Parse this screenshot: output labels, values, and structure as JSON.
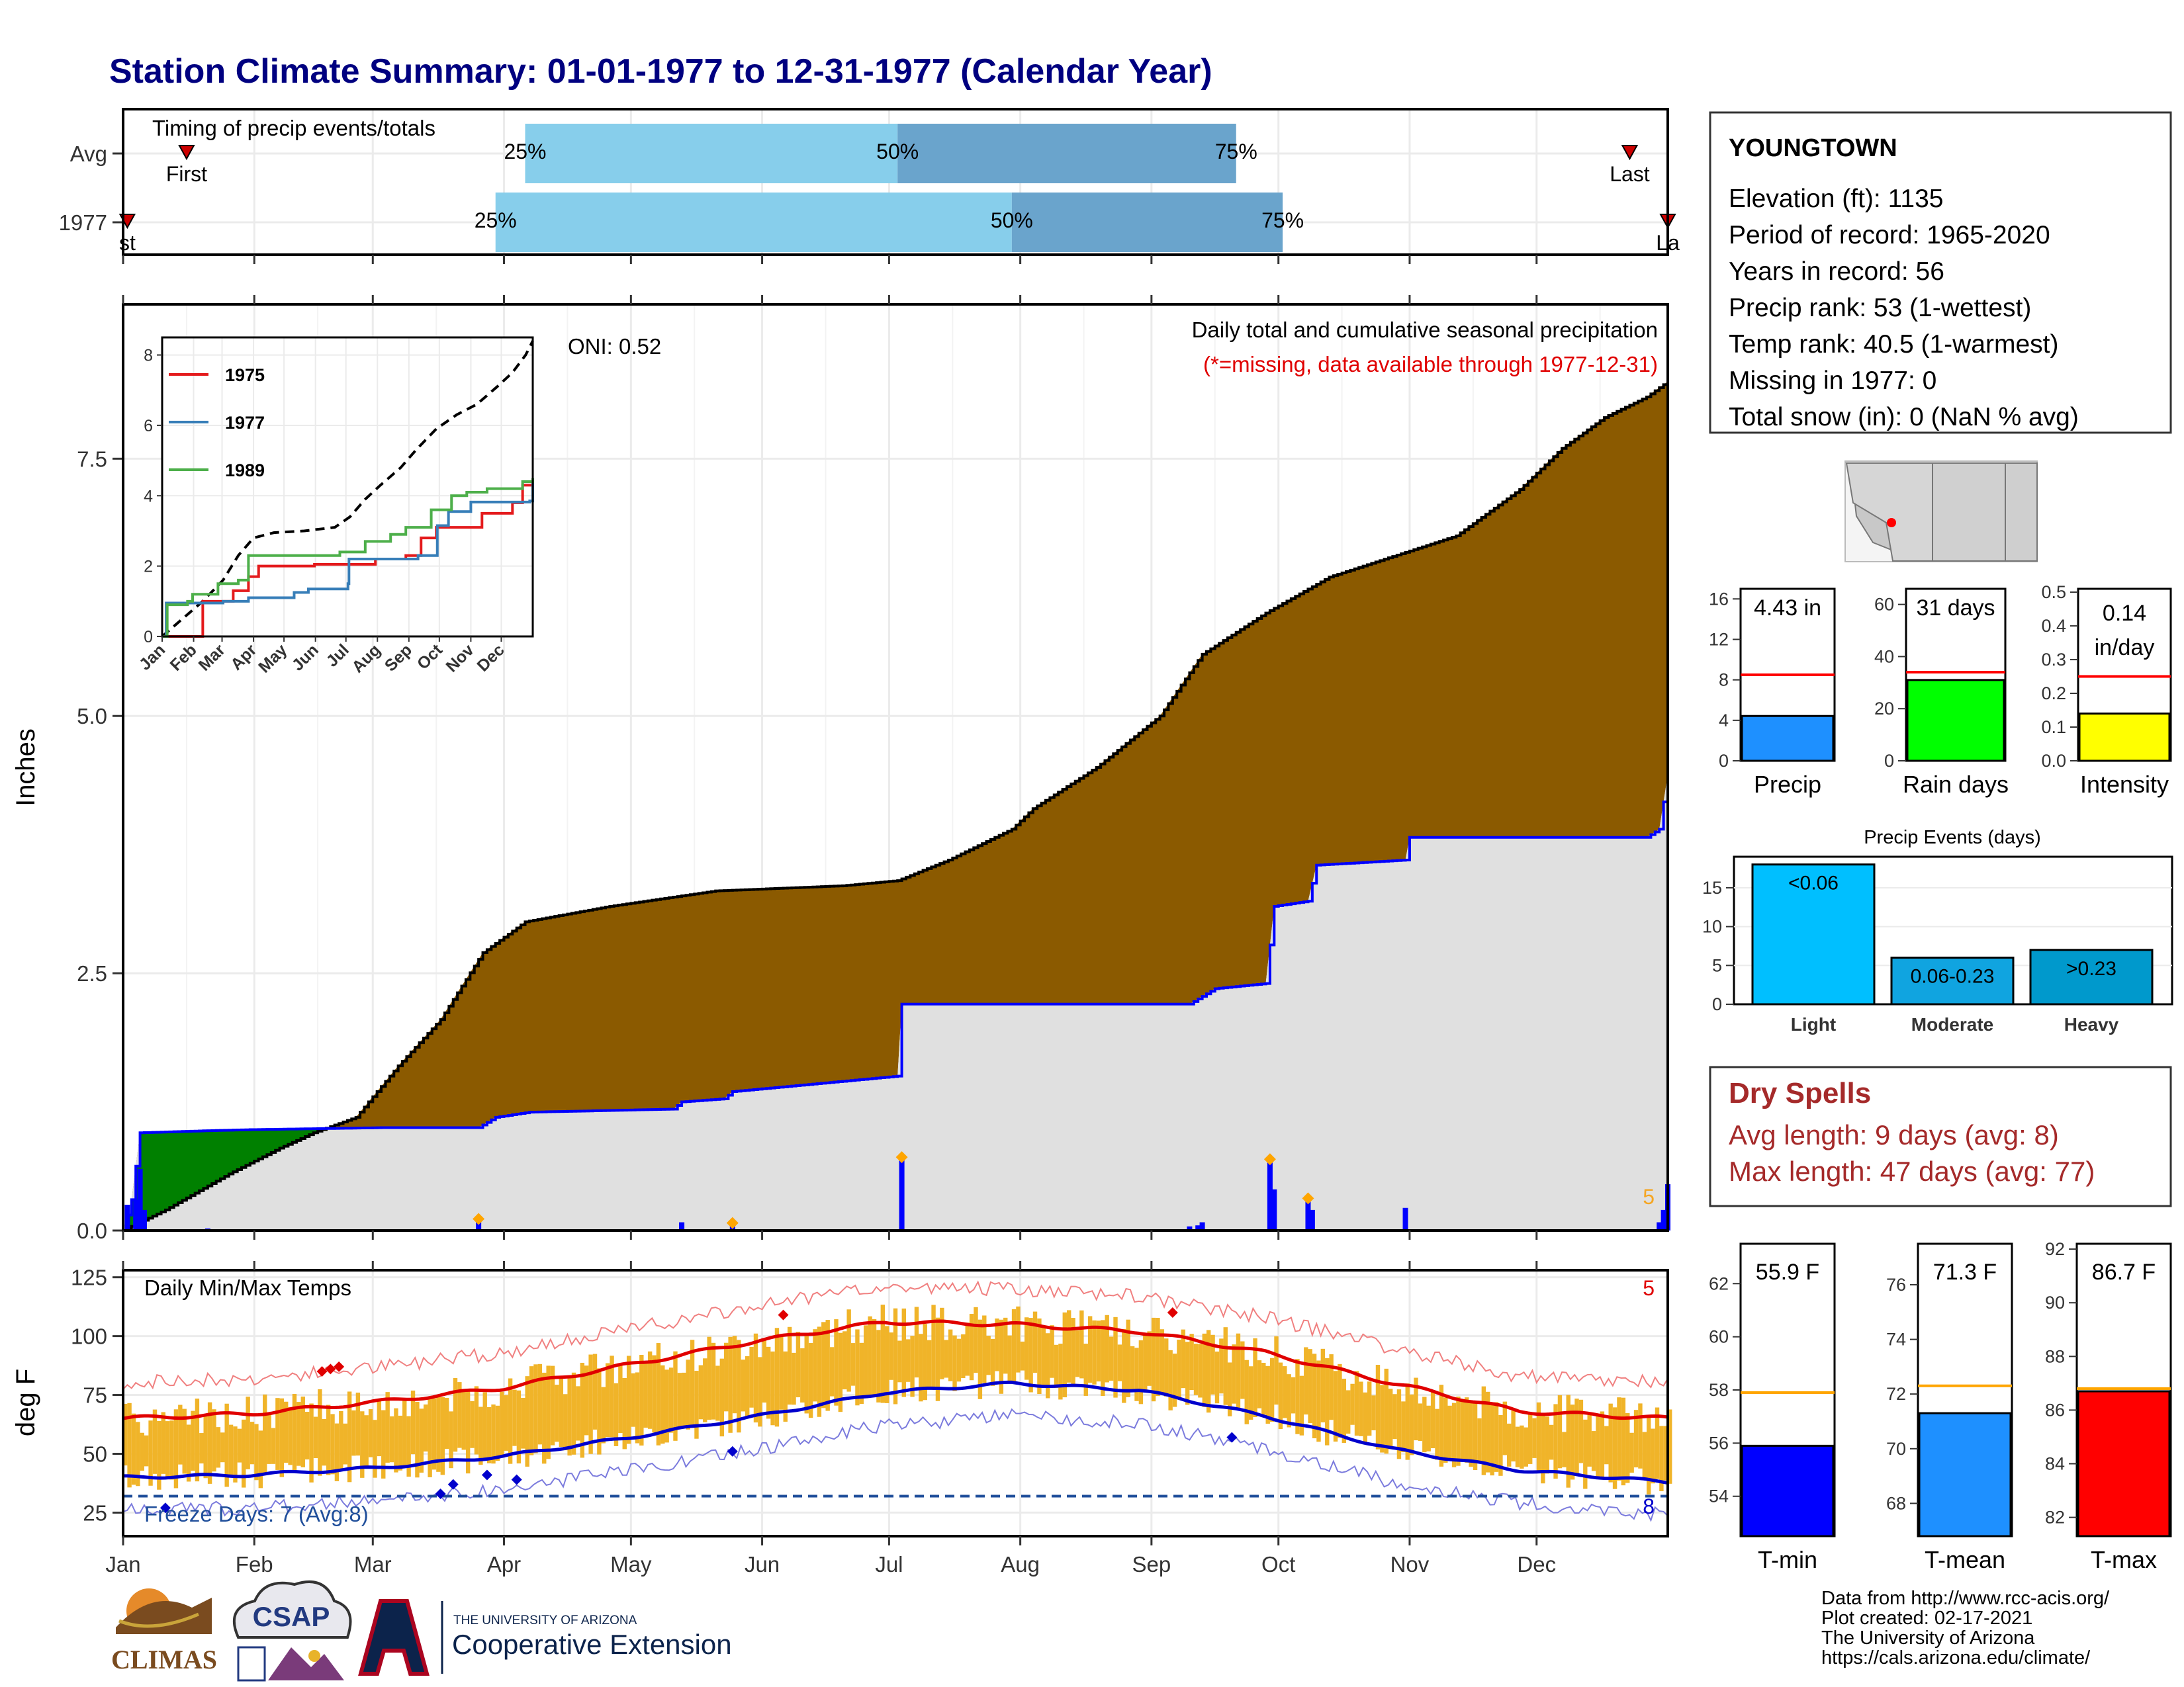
{
  "title": "Station Climate Summary: 01-01-1977 to 12-31-1977 (Calendar Year)",
  "months": [
    "Jan",
    "Feb",
    "Mar",
    "Apr",
    "May",
    "Jun",
    "Jul",
    "Aug",
    "Sep",
    "Oct",
    "Nov",
    "Dec"
  ],
  "timing_panel": {
    "label": "Timing of precip events/totals",
    "rows": [
      "Avg",
      "1977"
    ],
    "first_label": "First",
    "last_label": "Last",
    "first_label_clipped": "st",
    "last_label_clipped": "La",
    "pct": [
      "25%",
      "50%",
      "75%"
    ],
    "avg_doy": {
      "first": 15,
      "p25": 95,
      "p50": 183,
      "p75": 263,
      "last": 356
    },
    "y1977_doy": {
      "first": 1,
      "p25": 88,
      "p50": 210,
      "p75": 274,
      "last": 365
    },
    "color_light": "#87ceeb",
    "color_dark": "#6aa4cc"
  },
  "station": {
    "name": "YOUNGTOWN",
    "elevation": "Elevation (ft): 1135",
    "period": "Period of record: 1965-2020",
    "years": "Years in record: 56",
    "precip_rank": "Precip rank: 53 (1-wettest)",
    "temp_rank": "Temp rank: 40.5 (1-warmest)",
    "missing": "Missing in 1977: 0",
    "snow": "Total snow (in): 0 (NaN % avg)"
  },
  "precip_panel": {
    "ylabel": "Inches",
    "oni": "ONI: 0.52",
    "caption1": "Daily total and cumulative seasonal precipitation",
    "caption2": "(*=missing, data available through 1977-12-31)",
    "corner_count": "5",
    "yticks": [
      "0.0",
      "2.5",
      "5.0",
      "7.5"
    ],
    "colors": {
      "above": "#8b5a00",
      "below": "#008000",
      "obs_fill": "#e0e0e0",
      "line": "#0000ff",
      "bars": "#0000ff",
      "marker": "#ffa500"
    },
    "chart_data": {
      "type": "area",
      "ylim": [
        0,
        9
      ],
      "avg_cumulative": [
        [
          0,
          0
        ],
        [
          10,
          0.2
        ],
        [
          25,
          0.55
        ],
        [
          37,
          0.8
        ],
        [
          45,
          0.95
        ],
        [
          55,
          1.1
        ],
        [
          65,
          1.6
        ],
        [
          75,
          2.05
        ],
        [
          85,
          2.7
        ],
        [
          95,
          3.0
        ],
        [
          115,
          3.15
        ],
        [
          140,
          3.3
        ],
        [
          170,
          3.35
        ],
        [
          183,
          3.4
        ],
        [
          195,
          3.6
        ],
        [
          210,
          3.9
        ],
        [
          215,
          4.1
        ],
        [
          230,
          4.5
        ],
        [
          245,
          5.0
        ],
        [
          255,
          5.6
        ],
        [
          270,
          6.0
        ],
        [
          285,
          6.35
        ],
        [
          300,
          6.55
        ],
        [
          315,
          6.75
        ],
        [
          330,
          7.2
        ],
        [
          340,
          7.6
        ],
        [
          350,
          7.9
        ],
        [
          360,
          8.1
        ],
        [
          365,
          8.25
        ]
      ],
      "obs_cumulative": [
        [
          0,
          0
        ],
        [
          2,
          0.3
        ],
        [
          4,
          0.95
        ],
        [
          20,
          0.97
        ],
        [
          30,
          0.98
        ],
        [
          62,
          1.0
        ],
        [
          84,
          1.0
        ],
        [
          88,
          1.1
        ],
        [
          96,
          1.15
        ],
        [
          130,
          1.18
        ],
        [
          132,
          1.25
        ],
        [
          142,
          1.28
        ],
        [
          144,
          1.35
        ],
        [
          183,
          1.5
        ],
        [
          184,
          2.2
        ],
        [
          252,
          2.2
        ],
        [
          254,
          2.25
        ],
        [
          258,
          2.35
        ],
        [
          270,
          2.4
        ],
        [
          272,
          3.15
        ],
        [
          280,
          3.2
        ],
        [
          282,
          3.55
        ],
        [
          303,
          3.6
        ],
        [
          304,
          3.82
        ],
        [
          360,
          3.82
        ],
        [
          363,
          3.9
        ],
        [
          365,
          4.43
        ]
      ],
      "daily": [
        [
          1,
          0.25
        ],
        [
          3,
          0.3
        ],
        [
          4,
          0.6
        ],
        [
          5,
          0.2
        ],
        [
          20,
          0.02
        ],
        [
          84,
          0.1
        ],
        [
          132,
          0.08
        ],
        [
          144,
          0.06
        ],
        [
          184,
          0.7
        ],
        [
          252,
          0.04
        ],
        [
          254,
          0.05
        ],
        [
          255,
          0.08
        ],
        [
          271,
          0.68
        ],
        [
          272,
          0.4
        ],
        [
          280,
          0.3
        ],
        [
          281,
          0.2
        ],
        [
          303,
          0.22
        ],
        [
          363,
          0.08
        ],
        [
          364,
          0.2
        ],
        [
          365,
          0.45
        ]
      ],
      "marker_days": [
        84,
        144,
        184,
        271,
        280
      ]
    },
    "inset": {
      "yticks": [
        "0",
        "2",
        "4",
        "6",
        "8"
      ],
      "months": [
        "Jan",
        "Feb",
        "Mar",
        "Apr",
        "May",
        "Jun",
        "Jul",
        "Aug",
        "Sep",
        "Oct",
        "Nov",
        "Dec"
      ],
      "ylim": [
        0,
        8.5
      ],
      "series": [
        {
          "name": "1975",
          "color": "#e41a1c",
          "points": [
            [
              0,
              0
            ],
            [
              30,
              0
            ],
            [
              40,
              1.0
            ],
            [
              70,
              1.3
            ],
            [
              85,
              1.7
            ],
            [
              95,
              2.0
            ],
            [
              120,
              2.0
            ],
            [
              150,
              2.05
            ],
            [
              180,
              2.05
            ],
            [
              210,
              2.2
            ],
            [
              240,
              2.3
            ],
            [
              255,
              2.8
            ],
            [
              270,
              3.1
            ],
            [
              300,
              3.1
            ],
            [
              315,
              3.5
            ],
            [
              345,
              3.8
            ],
            [
              355,
              4.3
            ],
            [
              365,
              4.45
            ]
          ]
        },
        {
          "name": "1977",
          "color": "#377eb8",
          "points": [
            [
              0,
              0
            ],
            [
              4,
              0.95
            ],
            [
              60,
              1.0
            ],
            [
              85,
              1.1
            ],
            [
              130,
              1.25
            ],
            [
              144,
              1.35
            ],
            [
              183,
              1.5
            ],
            [
              184,
              2.2
            ],
            [
              252,
              2.3
            ],
            [
              271,
              3.15
            ],
            [
              282,
              3.55
            ],
            [
              304,
              3.82
            ],
            [
              362,
              3.85
            ],
            [
              365,
              4.43
            ]
          ]
        },
        {
          "name": "1989",
          "color": "#4daf4a",
          "points": [
            [
              0,
              0
            ],
            [
              5,
              0.9
            ],
            [
              25,
              1.0
            ],
            [
              30,
              1.2
            ],
            [
              40,
              1.2
            ],
            [
              55,
              1.5
            ],
            [
              75,
              1.6
            ],
            [
              85,
              2.3
            ],
            [
              130,
              2.3
            ],
            [
              175,
              2.4
            ],
            [
              200,
              2.7
            ],
            [
              225,
              2.9
            ],
            [
              240,
              3.1
            ],
            [
              265,
              3.6
            ],
            [
              285,
              4.0
            ],
            [
              300,
              4.1
            ],
            [
              320,
              4.2
            ],
            [
              345,
              4.2
            ],
            [
              355,
              4.4
            ],
            [
              365,
              4.5
            ]
          ]
        }
      ],
      "avg_points": [
        [
          0,
          0
        ],
        [
          20,
          0.5
        ],
        [
          40,
          1.0
        ],
        [
          60,
          1.6
        ],
        [
          75,
          2.3
        ],
        [
          90,
          2.8
        ],
        [
          110,
          2.95
        ],
        [
          140,
          3.0
        ],
        [
          170,
          3.1
        ],
        [
          185,
          3.4
        ],
        [
          200,
          3.9
        ],
        [
          215,
          4.3
        ],
        [
          235,
          4.8
        ],
        [
          250,
          5.3
        ],
        [
          270,
          5.9
        ],
        [
          290,
          6.3
        ],
        [
          310,
          6.6
        ],
        [
          330,
          7.1
        ],
        [
          345,
          7.5
        ],
        [
          358,
          8.0
        ],
        [
          365,
          8.4
        ]
      ]
    }
  },
  "temp_panel": {
    "ylabel": "deg F",
    "label": "Daily Min/Max Temps",
    "freeze": "Freeze Days: 7 (Avg:8)",
    "corner_top": "5",
    "corner_bottom": "8",
    "yticks": [
      "25",
      "50",
      "75",
      "100",
      "125"
    ],
    "colors": {
      "bar": "#f0b429",
      "max": "#e00000",
      "min": "#0000cc",
      "freeze": "#1f4e9a"
    },
    "chart_data": {
      "type": "bar",
      "ylim": [
        15,
        128
      ],
      "freeze_line": 32,
      "avg_max_anchor": [
        [
          0,
          65
        ],
        [
          30,
          67
        ],
        [
          60,
          72
        ],
        [
          90,
          78
        ],
        [
          120,
          88
        ],
        [
          150,
          98
        ],
        [
          180,
          106
        ],
        [
          210,
          105
        ],
        [
          240,
          102
        ],
        [
          270,
          93
        ],
        [
          300,
          80
        ],
        [
          330,
          68
        ],
        [
          365,
          65
        ]
      ],
      "avg_min_anchor": [
        [
          0,
          40
        ],
        [
          30,
          41
        ],
        [
          60,
          44
        ],
        [
          90,
          49
        ],
        [
          120,
          57
        ],
        [
          150,
          66
        ],
        [
          180,
          76
        ],
        [
          210,
          80
        ],
        [
          240,
          77
        ],
        [
          270,
          66
        ],
        [
          300,
          52
        ],
        [
          330,
          43
        ],
        [
          365,
          38
        ]
      ],
      "record_max_offset": 15,
      "record_min_offset": -14,
      "red_marker_days": [
        [
          47,
          85
        ],
        [
          49,
          86
        ],
        [
          51,
          87
        ],
        [
          156,
          109
        ],
        [
          248,
          110
        ]
      ],
      "blue_marker_days": [
        [
          10,
          27
        ],
        [
          75,
          33
        ],
        [
          78,
          37
        ],
        [
          86,
          41
        ],
        [
          93,
          39
        ],
        [
          144,
          51
        ],
        [
          262,
          57
        ]
      ]
    }
  },
  "small_bars": [
    {
      "name": "Precip",
      "value_label": "4.43 in",
      "value": 4.43,
      "avg": 8.5,
      "ylim": [
        0,
        17
      ],
      "yticks": [
        0,
        4,
        8,
        12,
        16
      ],
      "color": "#1e90ff"
    },
    {
      "name": "Rain days",
      "value_label": "31 days",
      "value": 31,
      "avg": 34,
      "ylim": [
        0,
        66
      ],
      "yticks": [
        0,
        20,
        40,
        60
      ],
      "color": "#00ff00"
    },
    {
      "name": "Intensity",
      "value_label": "0.14 in/day",
      "value_line1": "0.14",
      "value_line2": "in/day",
      "value": 0.14,
      "avg": 0.25,
      "ylim": [
        0,
        0.51
      ],
      "yticks": [
        0.0,
        0.1,
        0.2,
        0.3,
        0.4,
        0.5
      ],
      "color": "#ffff00"
    }
  ],
  "precip_events": {
    "title": "Precip Events (days)",
    "ylim": [
      0,
      19
    ],
    "yticks": [
      0,
      5,
      10,
      15
    ],
    "bars": [
      {
        "category": "Light",
        "label": "<0.06",
        "value": 18,
        "color": "#00bfff"
      },
      {
        "category": "Moderate",
        "label": "0.06-0.23",
        "value": 6,
        "color": "#10a4e0"
      },
      {
        "category": "Heavy",
        "label": ">0.23",
        "value": 7,
        "color": "#0099cc"
      }
    ]
  },
  "dry_spells": {
    "title": "Dry Spells",
    "avg_length": "Avg length: 9 days (avg: 8)",
    "max_length": "Max length: 47 days (avg: 77)"
  },
  "temp_bars": [
    {
      "name": "T-min",
      "value_label": "55.9 F",
      "value": 55.9,
      "avg": 57.9,
      "ylim": [
        52.5,
        63.5
      ],
      "yticks": [
        54,
        56,
        58,
        60,
        62
      ],
      "color": "#0000ff"
    },
    {
      "name": "T-mean",
      "value_label": "71.3 F",
      "value": 71.3,
      "avg": 72.3,
      "ylim": [
        66.8,
        77.5
      ],
      "yticks": [
        68,
        70,
        72,
        74,
        76
      ],
      "color": "#1e90ff"
    },
    {
      "name": "T-max",
      "value_label": "86.7 F",
      "value": 86.7,
      "avg": 86.8,
      "ylim": [
        81.3,
        92.2
      ],
      "yticks": [
        82,
        84,
        86,
        88,
        90,
        92
      ],
      "color": "#ff0000"
    }
  ],
  "footer": {
    "lines": [
      "Data from http://www.rcc-acis.org/",
      "Plot created: 02-17-2021",
      "The University of Arizona",
      "https://cals.arizona.edu/climate/"
    ],
    "logo_climas": "CLIMAS",
    "logo_csap": "CSAP",
    "logo_ua_small": "THE UNIVERSITY OF ARIZONA",
    "logo_ua_big": "Cooperative Extension"
  }
}
